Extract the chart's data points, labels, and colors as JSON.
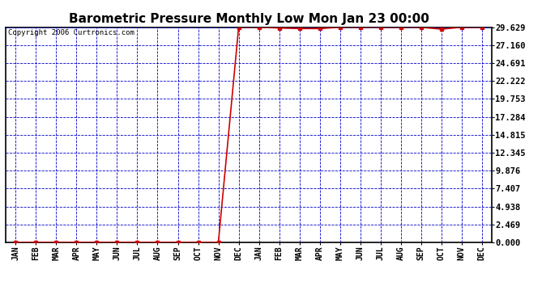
{
  "title": "Barometric Pressure Monthly Low Mon Jan 23 00:00",
  "copyright": "Copyright 2006 Curtronics.com",
  "x_labels": [
    "JAN",
    "FEB",
    "MAR",
    "APR",
    "MAY",
    "JUN",
    "JUL",
    "AUG",
    "SEP",
    "OCT",
    "NOV",
    "DEC",
    "JAN",
    "FEB",
    "MAR",
    "APR",
    "MAY",
    "JUN",
    "JUL",
    "AUG",
    "SEP",
    "OCT",
    "NOV",
    "DEC"
  ],
  "y_ticks": [
    0.0,
    2.469,
    4.938,
    7.407,
    9.876,
    12.345,
    14.815,
    17.284,
    19.753,
    22.222,
    24.691,
    27.16,
    29.629
  ],
  "y_min": 0.0,
  "y_max": 29.629,
  "data_x": [
    0,
    1,
    2,
    3,
    4,
    5,
    6,
    7,
    8,
    9,
    10,
    11,
    12,
    13,
    14,
    15,
    16,
    17,
    18,
    19,
    20,
    21,
    22,
    23
  ],
  "data_y": [
    0.0,
    0.0,
    0.0,
    0.0,
    0.0,
    0.0,
    0.0,
    0.0,
    0.0,
    0.0,
    0.0,
    29.629,
    29.629,
    29.531,
    29.453,
    29.453,
    29.629,
    29.629,
    29.629,
    29.629,
    29.629,
    29.375,
    29.629,
    29.629
  ],
  "line_color": "#cc0000",
  "marker": "s",
  "marker_size": 2.5,
  "grid_color": "#0000cc",
  "grid_linestyle": "--",
  "bg_color": "#ffffff",
  "plot_bg_color": "#ffffff",
  "title_fontsize": 11,
  "axis_label_fontsize": 7,
  "ytick_fontsize": 7.5,
  "copyright_fontsize": 6.5,
  "line_width": 1.2
}
